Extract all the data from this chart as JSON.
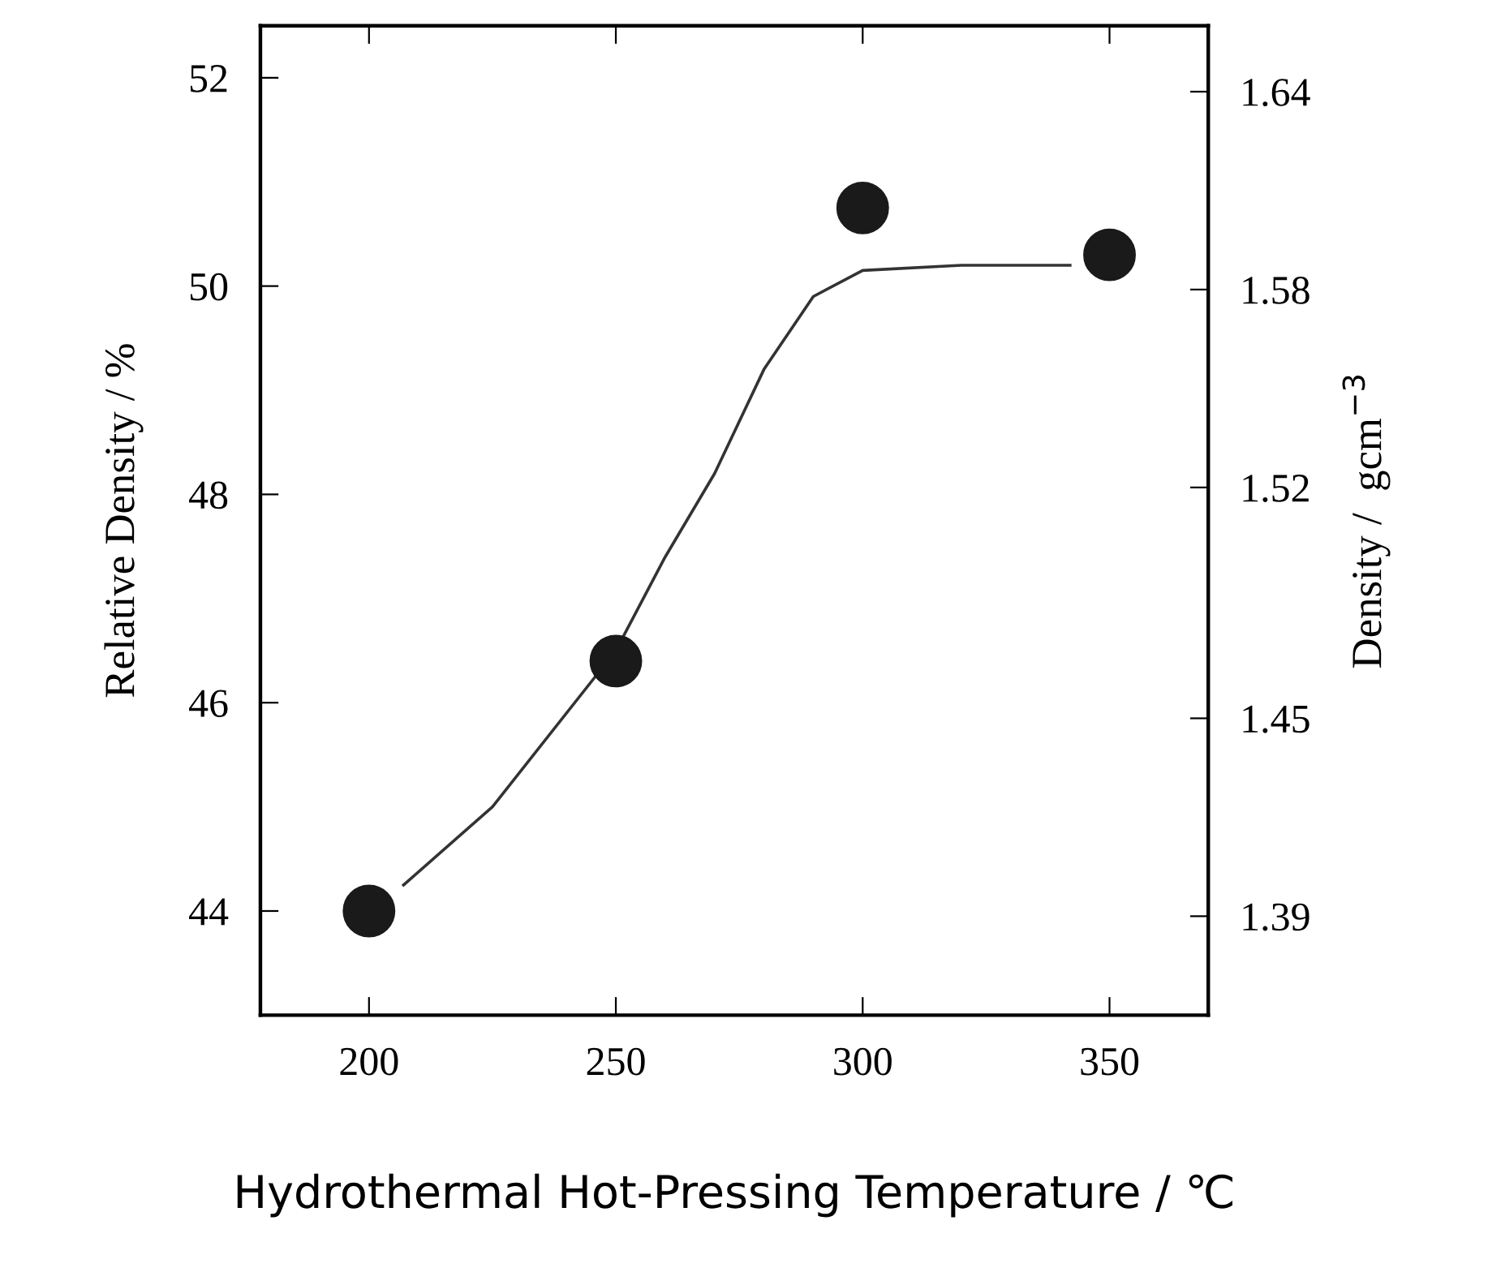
{
  "chart_data": {
    "type": "scatter",
    "xlabel": "Hydrothermal Hot-Pressing Temperature / ℃",
    "ylabel": "Relative Density / %",
    "y2label": "Density /  gcm$^{−3}$",
    "x": [
      200,
      250,
      300,
      350
    ],
    "series": [
      {
        "color": "#1a1a1a",
        "marker": "circle",
        "values": [
          44.0,
          46.4,
          50.75,
          50.3
        ]
      },
      {
        "type": "line",
        "color": "#333333",
        "marker": "none",
        "line_style": "solid",
        "x": [
          207,
          225,
          250,
          260,
          270,
          280,
          290,
          300,
          320,
          342
        ],
        "values": [
          44.25,
          45.0,
          46.5,
          47.4,
          48.2,
          49.2,
          49.9,
          50.15,
          50.2,
          50.2
        ]
      }
    ],
    "xlim": [
      178,
      370
    ],
    "xticks": [
      200,
      250,
      300,
      350
    ],
    "ylim": [
      43,
      52.5
    ],
    "yticks": [
      44,
      46,
      48,
      50,
      52
    ],
    "y2lim": [
      1.36,
      1.66
    ],
    "y2ticks": [
      1.39,
      1.45,
      1.52,
      1.58,
      1.64
    ],
    "grid": false,
    "legend": false
  }
}
